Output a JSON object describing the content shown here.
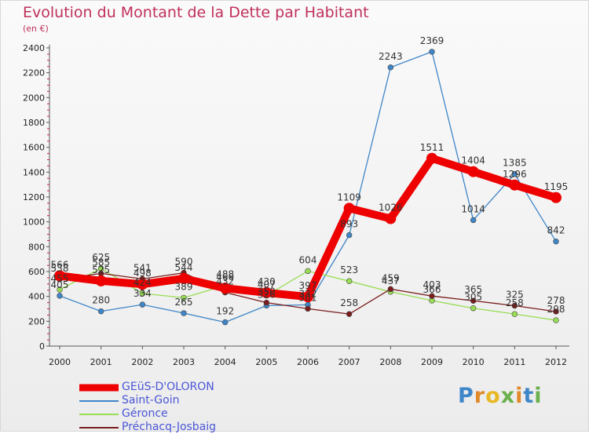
{
  "title": "Evolution du Montant de la Dette par Habitant",
  "subtitle": "(en €)",
  "brand": "Proxiti",
  "chart_data": {
    "type": "line",
    "ylim": [
      0,
      2400
    ],
    "yticks": [
      0,
      200,
      400,
      600,
      800,
      1000,
      1200,
      1400,
      1600,
      1800,
      2000,
      2200,
      2400
    ],
    "grid": false,
    "legend_position": "bottom-left",
    "x": [
      "2000",
      "2001",
      "2002",
      "2003",
      "2004",
      "2005",
      "2006",
      "2007",
      "2008",
      "2009",
      "2010",
      "2011",
      "2012"
    ],
    "series": [
      {
        "name": "GEüS-D'OLORON",
        "color": "#ee0000",
        "values": [
          566,
          525,
          498,
          544,
          466,
          430,
          397,
          1109,
          1026,
          1511,
          1404,
          1296,
          1195
        ],
        "labels": [
          "566",
          "525",
          "498",
          "544",
          "466",
          "430",
          "397",
          "1109",
          "1026",
          "1511",
          "1404",
          "1296",
          "1195"
        ]
      },
      {
        "name": "Saint-Goin",
        "color": "#3f86c8",
        "values": [
          405,
          280,
          334,
          265,
          192,
          326,
          332,
          893,
          2243,
          2369,
          1014,
          1385,
          842
        ],
        "labels": [
          "405",
          "280",
          "334",
          "265",
          "192",
          "326",
          "332",
          "893",
          "2243",
          "2369",
          "1014",
          "1385",
          "842"
        ]
      },
      {
        "name": "Géronce",
        "color": "#99dd55",
        "values": [
          455,
          625,
          424,
          389,
          488,
          407,
          604,
          523,
          437,
          366,
          305,
          258,
          208
        ],
        "labels": [
          "455",
          "625",
          "424",
          "389",
          "488",
          "407",
          "604",
          "523",
          "437",
          "366",
          "305",
          "258",
          "208"
        ]
      },
      {
        "name": "Préchacq-Josbaig",
        "color": "#7a1c1c",
        "values": [
          538,
          585,
          541,
          590,
          432,
          350,
          301,
          258,
          459,
          403,
          365,
          325,
          278
        ],
        "labels": [
          "538",
          "585",
          "541",
          "590",
          "432",
          "350",
          "301",
          "258",
          "459",
          "403",
          "365",
          "325",
          "278"
        ]
      }
    ]
  }
}
